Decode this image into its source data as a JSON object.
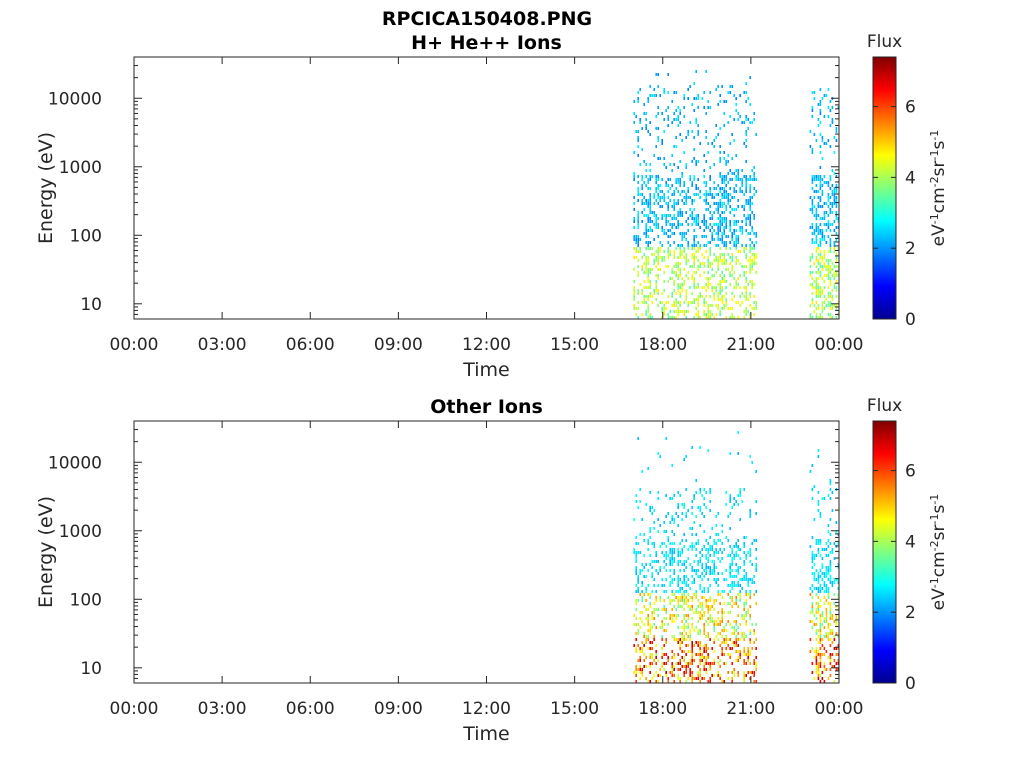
{
  "figure_title": "RPCICA150408.PNG",
  "chart_data": [
    {
      "type": "heatmap",
      "title": "H+ He++ Ions",
      "xlabel": "Time",
      "ylabel": "Energy (eV)",
      "x_ticks": [
        "00:00",
        "03:00",
        "06:00",
        "09:00",
        "12:00",
        "15:00",
        "18:00",
        "21:00",
        "00:00"
      ],
      "x_range_hours": [
        0,
        24
      ],
      "y_scale": "log",
      "y_ticks": [
        10,
        100,
        1000,
        10000
      ],
      "y_tick_labels": [
        "10",
        "100",
        "1000",
        "10000"
      ],
      "y_range": [
        6,
        40000
      ],
      "colorbar": {
        "label": "Flux",
        "units_label": "eV-1cm-2sr-1s-1",
        "range": [
          0,
          7.4
        ],
        "ticks": [
          0,
          2,
          4,
          6
        ],
        "tick_labels": [
          "0",
          "2",
          "4",
          "6"
        ],
        "colormap": "jet"
      },
      "data_intervals": [
        {
          "start_hour": 17.0,
          "end_hour": 21.2
        },
        {
          "start_hour": 23.0,
          "end_hour": 24.0
        }
      ],
      "grid": false
    },
    {
      "type": "heatmap",
      "title": "Other Ions",
      "xlabel": "Time",
      "ylabel": "Energy (eV)",
      "x_ticks": [
        "00:00",
        "03:00",
        "06:00",
        "09:00",
        "12:00",
        "15:00",
        "18:00",
        "21:00",
        "00:00"
      ],
      "x_range_hours": [
        0,
        24
      ],
      "y_scale": "log",
      "y_ticks": [
        10,
        100,
        1000,
        10000
      ],
      "y_tick_labels": [
        "10",
        "100",
        "1000",
        "10000"
      ],
      "y_range": [
        6,
        40000
      ],
      "colorbar": {
        "label": "Flux",
        "units_label": "eV-1cm-2sr-1s-1",
        "range": [
          0,
          7.4
        ],
        "ticks": [
          0,
          2,
          4,
          6
        ],
        "tick_labels": [
          "0",
          "2",
          "4",
          "6"
        ],
        "colormap": "jet"
      },
      "data_intervals": [
        {
          "start_hour": 17.0,
          "end_hour": 21.2
        },
        {
          "start_hour": 23.0,
          "end_hour": 24.0
        }
      ],
      "grid": false
    }
  ]
}
